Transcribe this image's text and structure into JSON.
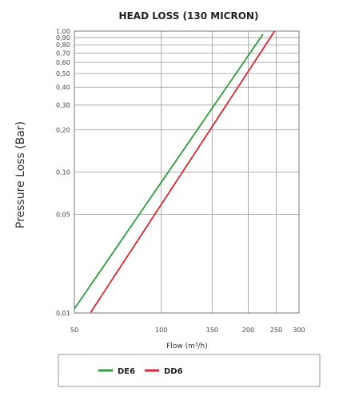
{
  "chart_data": {
    "type": "line",
    "title": "HEAD LOSS (130 MICRON)",
    "xlabel": "Flow (m³/h)",
    "ylabel": "Pressure Loss (Bar)",
    "x_scale": "log",
    "y_scale": "log",
    "xlim": [
      50,
      300
    ],
    "ylim": [
      0.01,
      1.0
    ],
    "x_ticks": [
      {
        "value": 50,
        "label": "50"
      },
      {
        "value": 100,
        "label": "100"
      },
      {
        "value": 150,
        "label": "150"
      },
      {
        "value": 200,
        "label": "200"
      },
      {
        "value": 250,
        "label": "250"
      },
      {
        "value": 300,
        "label": "300"
      }
    ],
    "y_ticks": [
      {
        "value": 0.01,
        "label": "0,01"
      },
      {
        "value": 0.05,
        "label": "0,05"
      },
      {
        "value": 0.1,
        "label": "0,10"
      },
      {
        "value": 0.2,
        "label": "0,20"
      },
      {
        "value": 0.3,
        "label": "0,30"
      },
      {
        "value": 0.4,
        "label": "0,40"
      },
      {
        "value": 0.5,
        "label": "0,50"
      },
      {
        "value": 0.6,
        "label": "0,60"
      },
      {
        "value": 0.7,
        "label": "0,70"
      },
      {
        "value": 0.8,
        "label": "0,80"
      },
      {
        "value": 0.9,
        "label": "0,90"
      },
      {
        "value": 1.0,
        "label": "1,00"
      }
    ],
    "grid": true,
    "legend_position": "bottom",
    "series": [
      {
        "name": "DE6",
        "color": "#2e9e3e",
        "x": [
          50,
          225
        ],
        "y": [
          0.0107,
          0.95
        ]
      },
      {
        "name": "DD6",
        "color": "#e0262c",
        "x": [
          57,
          247
        ],
        "y": [
          0.0101,
          1.0
        ]
      }
    ]
  }
}
